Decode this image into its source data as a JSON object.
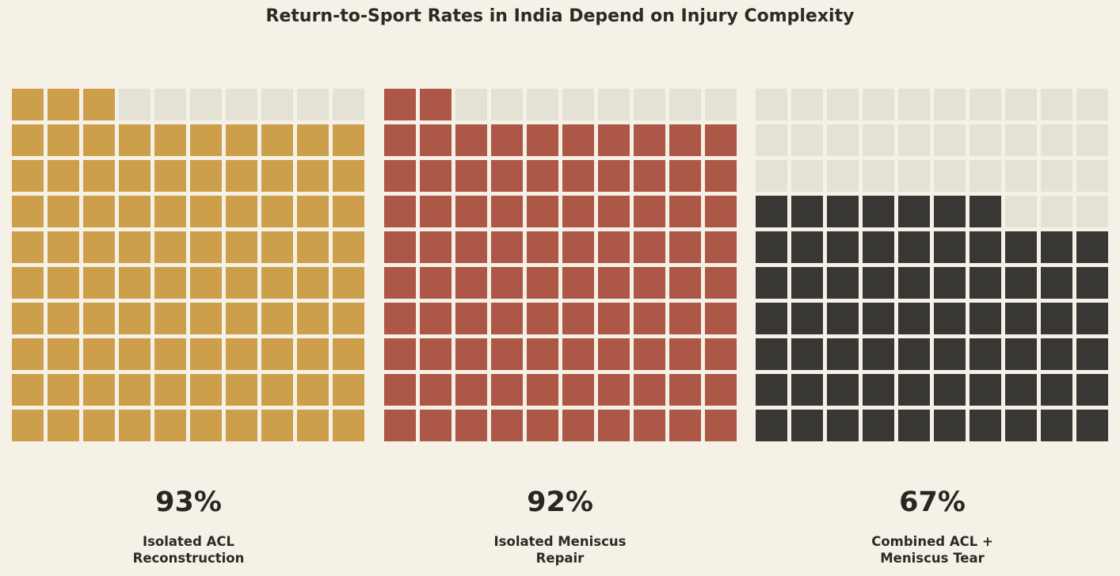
{
  "chart_data": {
    "type": "waffle",
    "title": "Return-to-Sport Rates in India Depend on Injury Complexity",
    "grid": {
      "rows": 10,
      "cols": 10,
      "total_cells": 100
    },
    "empty_color": "#e4e1d5",
    "panels": [
      {
        "category": "Isolated ACL\nReconstruction",
        "value": 93,
        "value_label": "93%",
        "color": "#cd9f4a"
      },
      {
        "category": "Isolated Meniscus\nRepair",
        "value": 92,
        "value_label": "92%",
        "color": "#ad5746"
      },
      {
        "category": "Combined ACL +\nMeniscus Tear",
        "value": 67,
        "value_label": "67%",
        "color": "#383733"
      }
    ]
  }
}
